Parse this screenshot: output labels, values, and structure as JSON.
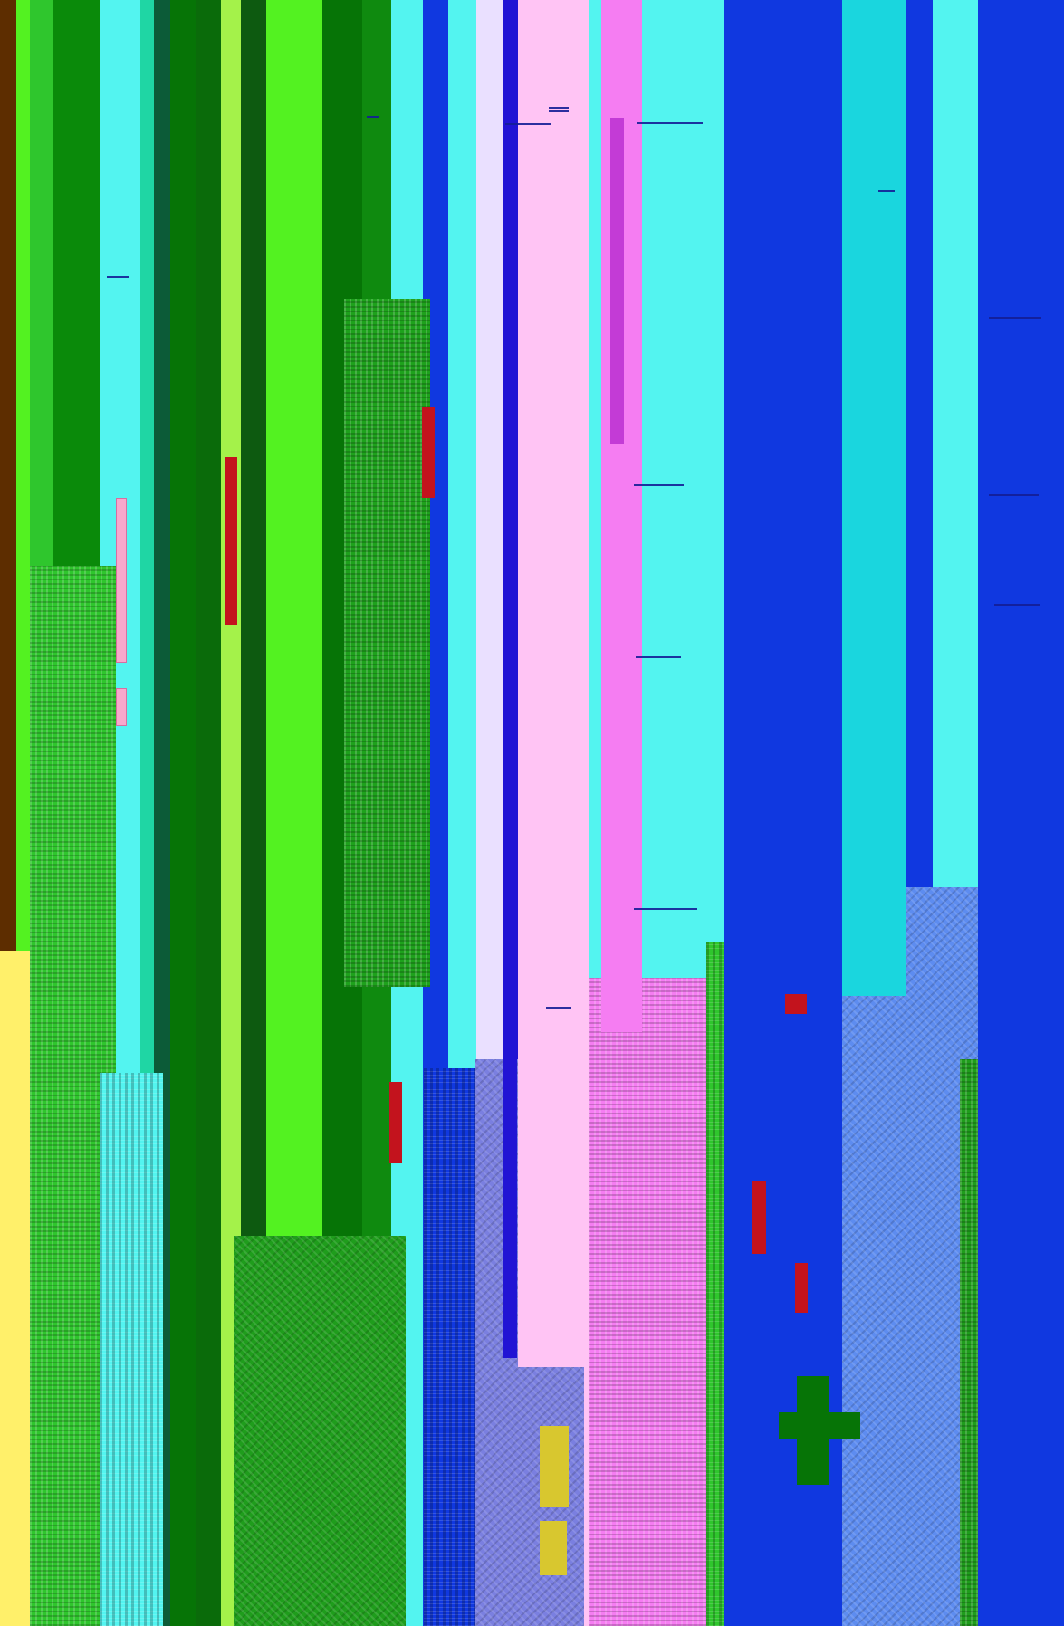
{
  "image": {
    "type": "glitch-art-screenshot",
    "background": "#1038e0"
  },
  "palette": {
    "lime": "#53f221",
    "green_dark": "#067406",
    "green_mid": "#1f9d1c",
    "green_light": "#8bf06e",
    "cyan": "#53f4f0",
    "cyan_dark": "#1ad6de",
    "blue": "#1038e0",
    "blue_deep": "#2114d4",
    "pink_light": "#ffc4f4",
    "pink_hot": "#f57df2",
    "magenta": "#c33bd6",
    "yellow": "#fff06a",
    "brown": "#5d2d00",
    "red": "#c3131d"
  },
  "stripes": [
    {
      "color": "#5d2d00"
    },
    {
      "color": "#53f221"
    },
    {
      "color": "#2fc62d"
    },
    {
      "color": "#0a8a0a"
    },
    {
      "color": "#53f4f0"
    },
    {
      "color": "#1fd6a4"
    },
    {
      "color": "#0c5b38"
    },
    {
      "color": "#067406"
    },
    {
      "color": "#0a6b0a"
    },
    {
      "color": "#a4f24a"
    },
    {
      "color": "#0d5a10"
    },
    {
      "color": "#53f221"
    },
    {
      "color": "#067406"
    },
    {
      "color": "#0f8a0f"
    },
    {
      "color": "#53f4f0"
    },
    {
      "color": "#53f4f0"
    },
    {
      "color": "#1038e0"
    },
    {
      "color": "#53f4f0"
    },
    {
      "color": "#eae0ff"
    },
    {
      "color": "#2114d4"
    },
    {
      "color": "#ffc4f4"
    },
    {
      "color": "#53f4f0"
    },
    {
      "color": "#f57df2"
    },
    {
      "color": "#53f4f0"
    },
    {
      "color": "#1038e0"
    },
    {
      "color": "#1038e0"
    },
    {
      "color": "#53f4f0"
    },
    {
      "color": "#1038e0"
    },
    {
      "color": "#53f4f0"
    },
    {
      "color": "#1038e0"
    }
  ]
}
